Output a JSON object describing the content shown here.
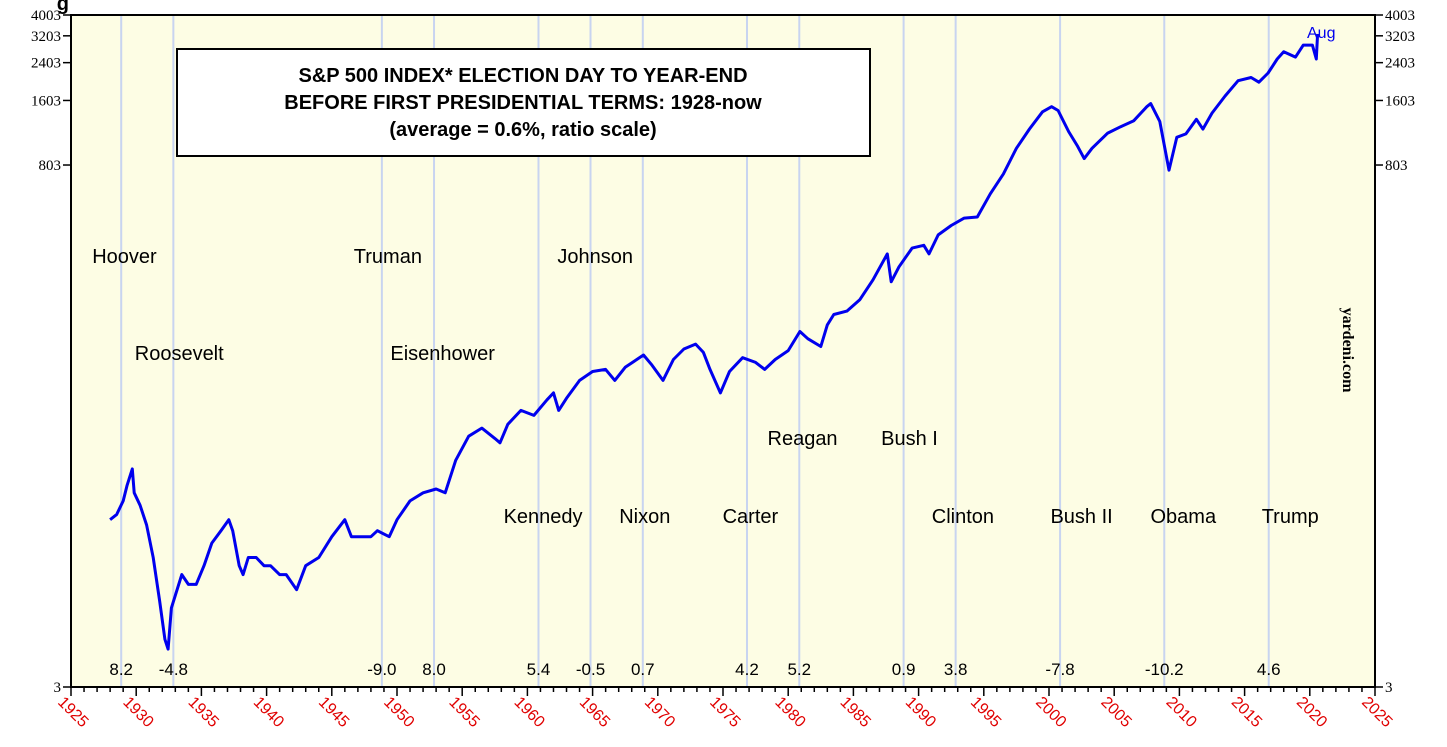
{
  "colors": {
    "background": "#fdfde4",
    "series": "#0000ee",
    "election_lines": "#c8d4f0",
    "x_tick_labels": "#e00000"
  },
  "chart_data": {
    "type": "line",
    "title_lines": [
      "S&P 500 INDEX* ELECTION DAY TO YEAR-END",
      "BEFORE FIRST PRESIDENTIAL TERMS: 1928-now",
      "(average = 0.6%, ratio scale)"
    ],
    "corner_label": "g",
    "source": "yardeni.com",
    "y_scale": "log",
    "ylim": [
      3,
      4003
    ],
    "y_ticks": [
      3,
      803,
      1603,
      2403,
      3203,
      4003
    ],
    "xlim": [
      1925,
      2025
    ],
    "x_ticks": [
      1925,
      1930,
      1935,
      1940,
      1945,
      1950,
      1955,
      1960,
      1965,
      1970,
      1975,
      1980,
      1985,
      1990,
      1995,
      2000,
      2005,
      2010,
      2015,
      2020,
      2025
    ],
    "grid": "vertical lines at election days",
    "last_label": "Aug",
    "series": [
      {
        "x": [
          1928.0,
          1928.5,
          1929.0,
          1929.3,
          1929.7,
          1929.85,
          1930.3,
          1930.8,
          1931.3,
          1931.8,
          1932.2,
          1932.45,
          1932.7,
          1933.0,
          1933.5,
          1934.0,
          1934.6,
          1935.2,
          1935.8,
          1936.5,
          1937.1,
          1937.4,
          1937.9,
          1938.2,
          1938.6,
          1939.2,
          1939.8,
          1940.3,
          1941.0,
          1941.5,
          1942.3,
          1943.0,
          1944.0,
          1945.0,
          1946.0,
          1946.5,
          1947.0,
          1948.0,
          1948.5,
          1949.4,
          1950.0,
          1951.0,
          1952.0,
          1953.0,
          1953.7,
          1954.5,
          1955.5,
          1956.5,
          1957.5,
          1957.9,
          1958.5,
          1959.5,
          1960.5,
          1961.5,
          1962.0,
          1962.4,
          1963.0,
          1964.0,
          1965.0,
          1966.0,
          1966.7,
          1967.5,
          1968.9,
          1969.5,
          1970.4,
          1971.2,
          1972.0,
          1972.9,
          1973.5,
          1974.0,
          1974.8,
          1975.5,
          1976.5,
          1977.5,
          1978.2,
          1979.0,
          1980.0,
          1980.9,
          1981.5,
          1982.5,
          1983.0,
          1983.5,
          1984.5,
          1985.5,
          1986.5,
          1987.6,
          1987.9,
          1988.5,
          1989.5,
          1990.4,
          1990.8,
          1991.5,
          1992.5,
          1993.5,
          1994.5,
          1995.5,
          1996.5,
          1997.5,
          1998.5,
          1999.5,
          2000.2,
          2000.7,
          2001.5,
          2002.2,
          2002.7,
          2003.3,
          2004.5,
          2005.5,
          2006.5,
          2007.5,
          2007.8,
          2008.5,
          2009.2,
          2009.8,
          2010.5,
          2011.3,
          2011.8,
          2012.5,
          2013.5,
          2014.5,
          2015.5,
          2016.1,
          2016.8,
          2017.5,
          2018.0,
          2018.9,
          2019.5,
          2020.2,
          2020.5,
          2020.6
        ],
        "values": [
          18,
          19,
          22,
          26,
          31,
          24,
          21,
          17,
          12,
          7.5,
          5.0,
          4.5,
          7,
          8,
          10,
          9,
          9,
          11,
          14,
          16,
          18,
          16,
          11,
          10,
          12,
          12,
          11,
          11,
          10,
          10,
          8.5,
          11,
          12,
          15,
          18,
          15,
          15,
          15,
          16,
          15,
          18,
          22,
          24,
          25,
          24,
          34,
          44,
          48,
          43,
          41,
          50,
          58,
          55,
          65,
          70,
          58,
          66,
          80,
          88,
          90,
          80,
          92,
          105,
          95,
          80,
          100,
          112,
          118,
          108,
          90,
          70,
          88,
          102,
          97,
          90,
          100,
          110,
          135,
          125,
          115,
          145,
          162,
          168,
          190,
          235,
          310,
          230,
          270,
          330,
          340,
          310,
          380,
          420,
          455,
          460,
          590,
          730,
          960,
          1180,
          1420,
          1500,
          1440,
          1150,
          980,
          860,
          960,
          1130,
          1210,
          1290,
          1500,
          1550,
          1280,
          760,
          1080,
          1120,
          1310,
          1180,
          1400,
          1680,
          1980,
          2050,
          1950,
          2150,
          2500,
          2700,
          2550,
          2900,
          2900,
          2500,
          3270
        ]
      }
    ],
    "election_years": [
      1928.85,
      1932.85,
      1948.84,
      1952.84,
      1960.85,
      1964.84,
      1968.85,
      1976.84,
      1980.85,
      1988.85,
      1992.84,
      2000.85,
      2008.84,
      2016.85
    ],
    "presidents": [
      {
        "name": "Hoover",
        "row": 1,
        "x": 1929.1
      },
      {
        "name": "Roosevelt",
        "row": 2,
        "x": 1933.3
      },
      {
        "name": "Truman",
        "row": 1,
        "x": 1949.3
      },
      {
        "name": "Eisenhower",
        "row": 2,
        "x": 1953.5
      },
      {
        "name": "Johnson",
        "row": 1,
        "x": 1965.2
      },
      {
        "name": "Kennedy",
        "row": 4,
        "x": 1961.2
      },
      {
        "name": "Nixon",
        "row": 4,
        "x": 1969.0
      },
      {
        "name": "Carter",
        "row": 4,
        "x": 1977.1
      },
      {
        "name": "Reagan",
        "row": 3,
        "x": 1981.1
      },
      {
        "name": "Bush I",
        "row": 3,
        "x": 1989.3
      },
      {
        "name": "Clinton",
        "row": 4,
        "x": 1993.4
      },
      {
        "name": "Bush II",
        "row": 4,
        "x": 2002.5
      },
      {
        "name": "Obama",
        "row": 4,
        "x": 2010.3
      },
      {
        "name": "Trump",
        "row": 4,
        "x": 2018.5
      }
    ],
    "returns": [
      {
        "label": "8.2",
        "x": 1928.85
      },
      {
        "label": "-4.8",
        "x": 1932.85
      },
      {
        "label": "-9.0",
        "x": 1948.84
      },
      {
        "label": "8.0",
        "x": 1952.84
      },
      {
        "label": "5.4",
        "x": 1960.85
      },
      {
        "label": "-0.5",
        "x": 1964.84
      },
      {
        "label": "0.7",
        "x": 1968.85
      },
      {
        "label": "4.2",
        "x": 1976.84
      },
      {
        "label": "5.2",
        "x": 1980.85
      },
      {
        "label": "0.9",
        "x": 1988.85
      },
      {
        "label": "3.8",
        "x": 1992.84
      },
      {
        "label": "-7.8",
        "x": 2000.85
      },
      {
        "label": "-10.2",
        "x": 2008.84
      },
      {
        "label": "4.6",
        "x": 2016.85
      }
    ]
  }
}
